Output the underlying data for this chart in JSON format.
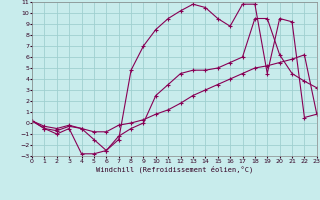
{
  "xlabel": "Windchill (Refroidissement éolien,°C)",
  "xlim": [
    0,
    23
  ],
  "ylim": [
    -3,
    11
  ],
  "xticks": [
    0,
    1,
    2,
    3,
    4,
    5,
    6,
    7,
    8,
    9,
    10,
    11,
    12,
    13,
    14,
    15,
    16,
    17,
    18,
    19,
    20,
    21,
    22,
    23
  ],
  "yticks": [
    -3,
    -2,
    -1,
    0,
    1,
    2,
    3,
    4,
    5,
    6,
    7,
    8,
    9,
    10,
    11
  ],
  "bg_color": "#c8ecec",
  "grid_color": "#a0d0d0",
  "line_color": "#880055",
  "curve1_x": [
    0,
    1,
    2,
    3,
    4,
    5,
    6,
    7,
    8,
    9,
    10,
    11,
    12,
    13,
    14,
    15,
    16,
    17,
    18,
    19,
    20,
    21,
    22,
    23
  ],
  "curve1_y": [
    0.2,
    -0.5,
    -0.7,
    -0.3,
    -0.5,
    -0.8,
    -0.8,
    -0.2,
    0.0,
    0.3,
    0.8,
    1.2,
    1.8,
    2.5,
    3.0,
    3.5,
    4.0,
    4.5,
    5.0,
    5.2,
    5.5,
    5.8,
    6.2,
    0.8
  ],
  "curve2_x": [
    0,
    1,
    2,
    3,
    4,
    5,
    6,
    7,
    8,
    9,
    10,
    11,
    12,
    13,
    14,
    15,
    16,
    17,
    18,
    19,
    20,
    21,
    22,
    23
  ],
  "curve2_y": [
    0.2,
    -0.5,
    -1.0,
    -0.5,
    -2.8,
    -2.8,
    -2.5,
    -1.2,
    -0.5,
    0.0,
    2.5,
    3.5,
    4.5,
    4.8,
    4.8,
    5.0,
    5.5,
    6.0,
    9.5,
    9.5,
    6.2,
    4.5,
    3.8,
    3.2
  ],
  "curve3_x": [
    0,
    1,
    2,
    3,
    4,
    5,
    6,
    7,
    8,
    9,
    10,
    11,
    12,
    13,
    14,
    15,
    16,
    17,
    18,
    19,
    20,
    21,
    22,
    23
  ],
  "curve3_y": [
    0.2,
    -0.3,
    -0.5,
    -0.2,
    -0.5,
    -1.5,
    -2.5,
    -1.5,
    4.8,
    7.0,
    8.5,
    9.5,
    10.2,
    10.8,
    10.5,
    9.5,
    8.8,
    10.8,
    10.8,
    4.5,
    9.5,
    9.2,
    0.5,
    0.8
  ]
}
